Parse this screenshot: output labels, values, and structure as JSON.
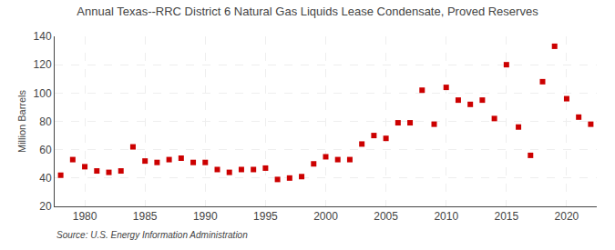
{
  "chart_data": {
    "type": "scatter",
    "title": "Annual Texas--RRC District 6 Natural Gas Liquids Lease Condensate, Proved Reserves",
    "ylabel": "Million Barrels",
    "annotations": [
      "Source: U.S. Energy Information Administration"
    ],
    "x": [
      1978,
      1979,
      1980,
      1981,
      1982,
      1983,
      1984,
      1985,
      1986,
      1987,
      1988,
      1989,
      1990,
      1991,
      1992,
      1993,
      1994,
      1995,
      1996,
      1997,
      1998,
      1999,
      2000,
      2001,
      2002,
      2003,
      2004,
      2005,
      2006,
      2007,
      2008,
      2009,
      2010,
      2011,
      2012,
      2013,
      2014,
      2015,
      2016,
      2017,
      2018,
      2019,
      2020,
      2021,
      2022
    ],
    "values": [
      42,
      53,
      48,
      45,
      44,
      45,
      62,
      52,
      51,
      53,
      54,
      51,
      51,
      46,
      44,
      46,
      46,
      47,
      39,
      40,
      41,
      50,
      55,
      53,
      53,
      64,
      70,
      68,
      79,
      79,
      102,
      78,
      104,
      95,
      92,
      95,
      82,
      120,
      76,
      56,
      108,
      133,
      96,
      83,
      78
    ],
    "color": "#cc0000",
    "marker": "square",
    "xlim": [
      1977.5,
      2022.5
    ],
    "xticks": [
      1980,
      1985,
      1990,
      1995,
      2000,
      2005,
      2010,
      2015,
      2020
    ],
    "ylim": [
      20,
      140
    ],
    "yticks": [
      20,
      40,
      60,
      80,
      100,
      120,
      140
    ],
    "grid": true
  }
}
